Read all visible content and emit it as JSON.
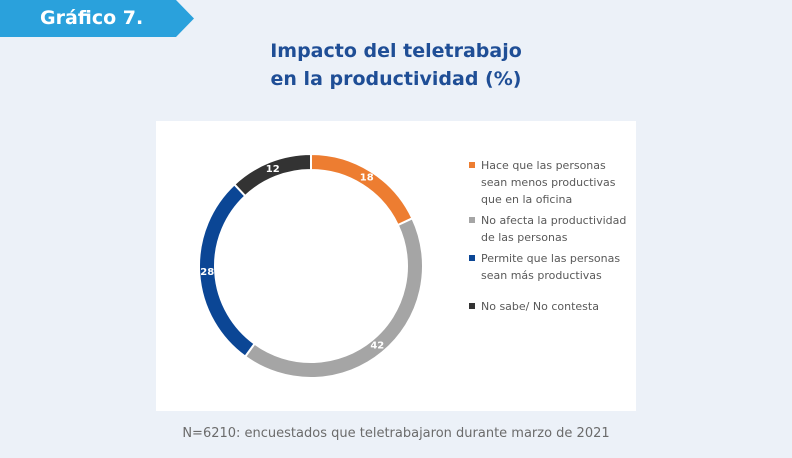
{
  "header": {
    "tag_label": "Gráfico 7."
  },
  "chart_data": {
    "type": "pie",
    "title_lines": [
      "Impacto del teletrabajo",
      "en la productividad (%)"
    ],
    "slices": [
      {
        "label": "Hace que las personas sean menos productivas que en la oficina",
        "value": 18,
        "color": "#ed7d31"
      },
      {
        "label": "No afecta la productividad de las personas",
        "value": 42,
        "color": "#a5a5a5"
      },
      {
        "label": "Permite que las personas sean más productivas",
        "value": 28,
        "color": "#0b4695"
      },
      {
        "label": "No sabe/ No contesta",
        "value": 12,
        "color": "#333333"
      }
    ],
    "legend_position": "right"
  },
  "footnote": "N=6210: encuestados que teletrabajaron durante marzo de 2021"
}
